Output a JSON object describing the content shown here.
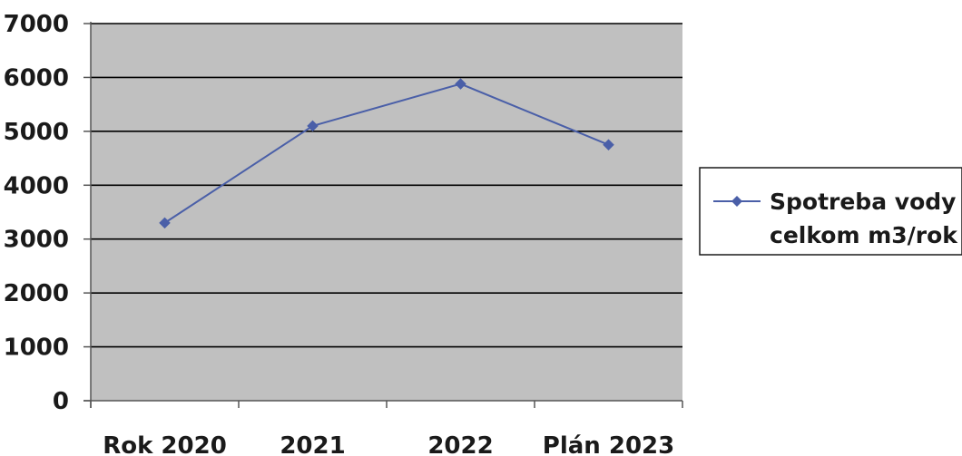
{
  "chart_data": {
    "type": "line",
    "title": "",
    "xlabel": "",
    "ylabel": "",
    "categories": [
      "Rok 2020",
      "2021",
      "2022",
      "Plán 2023"
    ],
    "ylim": [
      0,
      7000
    ],
    "yticks": [
      "0",
      "1000",
      "2000",
      "3000",
      "4000",
      "5000",
      "6000",
      "7000"
    ],
    "grid": true,
    "legend_position": "right",
    "series": [
      {
        "name_lines": [
          "Spotreba vody",
          "celkom m3/rok"
        ],
        "values": [
          3300,
          5100,
          5880,
          4750
        ],
        "color": "#4a5fa8",
        "marker": "diamond"
      }
    ],
    "plot_background": "#c0c0c0",
    "gridline_color": "#000000"
  }
}
